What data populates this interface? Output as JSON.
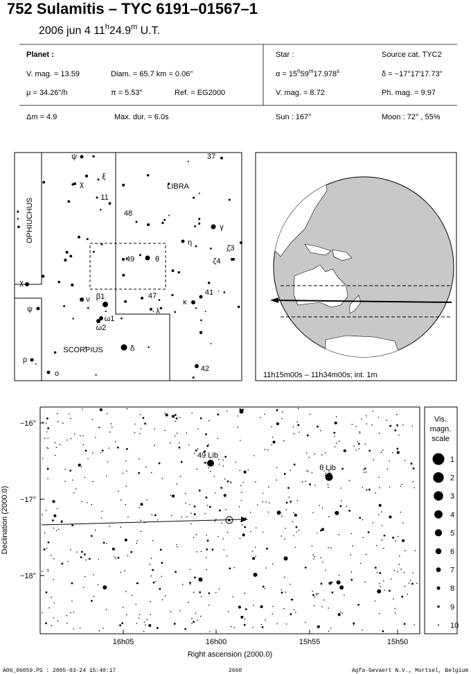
{
  "header": {
    "title": "752 Sulamitis  –  TYC 6191–01567–1",
    "date": {
      "day": "2006 jun  4  11",
      "h": "h",
      "min": "24.9",
      "m": "m",
      "ut": " U.T."
    }
  },
  "planet": {
    "heading": "Planet :",
    "vmag": "V. mag. = 13.59",
    "diam": "Diam. = 65.7 km = 0.06\"",
    "mu": "μ = 34.26\"/h",
    "pi": "π = 5.53\"",
    "ref": "Ref. = EG2000",
    "dm": "Δm = 4.9",
    "maxdur": "Max. dur. = 6.0s"
  },
  "star": {
    "heading": "Star :",
    "source": "Source cat.  TYC2",
    "alpha": {
      "a": "α = 15",
      "h": "h",
      "b": "59",
      "m": "m",
      "c": "17.978",
      "s": "s"
    },
    "delta": "δ = −17°17'17.73\"",
    "vmag": "V. mag. = 8.72",
    "phmag": "Ph. mag. = 9.97",
    "sun": "Sun : 167°",
    "moon": "Moon :  72° , 55%"
  },
  "finder": {
    "constellations": [
      "OPHIUCHUS",
      "LIBRA",
      "SCORPIUS"
    ],
    "stars": [
      "ψ",
      "χ",
      "ξ",
      "11",
      "37",
      "48",
      "γ",
      "η",
      "ζ3",
      "ζ4",
      "49",
      "θ",
      "47",
      "β1",
      "ν",
      "κ",
      "41",
      "λ",
      "ω1",
      "ω2",
      "δ",
      "42",
      "ρ",
      "ο",
      "χ",
      "ψ"
    ]
  },
  "globe": {
    "caption": "11h15m00s – 11h34m00s; int.  1m"
  },
  "field": {
    "ylabel": "Declination (2000.0)",
    "xlabel": "Right ascension (2000.0)",
    "yticks": [
      "−16°",
      "−17°",
      "−18°"
    ],
    "xticks": [
      "16h05",
      "16h00",
      "15h55",
      "15h50"
    ],
    "stars": [
      "49 Lib",
      "θ Lib"
    ]
  },
  "scale": {
    "title": [
      "Vis.",
      "magn.",
      "scale"
    ],
    "labels": [
      "1",
      "2",
      "3",
      "4",
      "5",
      "6",
      "7",
      "8",
      "9",
      "10"
    ]
  },
  "footer": {
    "file": "A06_06059.PS : 2005-03-24 15:40:17",
    "page": "2660",
    "org": "Agfa-Gevaert N.V., Mortsel, Belgium"
  }
}
